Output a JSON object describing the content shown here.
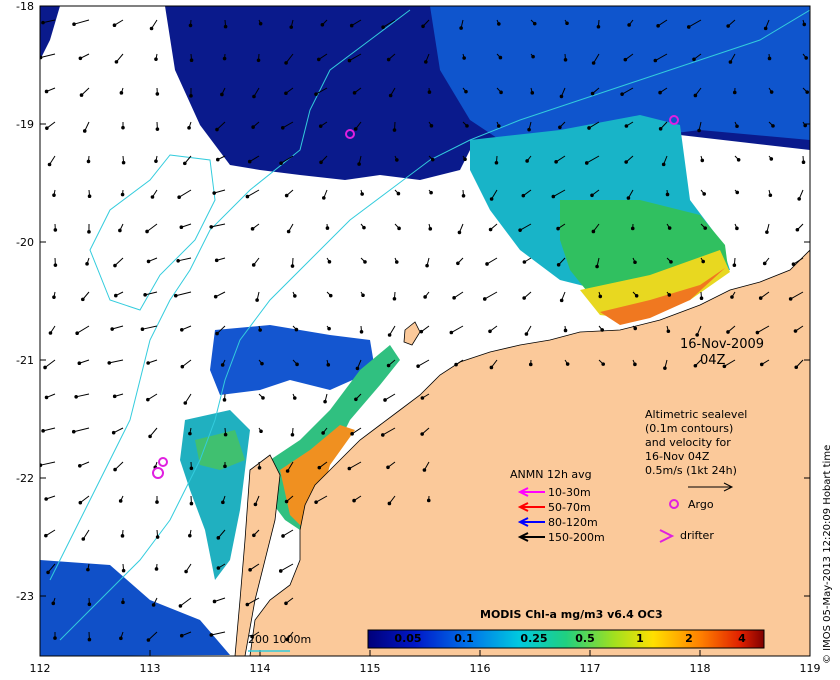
{
  "map": {
    "lat_ticks": [
      "-18",
      "-19",
      "-20",
      "-21",
      "-22",
      "-23"
    ],
    "lon_ticks": [
      "112",
      "113",
      "114",
      "115",
      "116",
      "117",
      "118",
      "119"
    ],
    "date_line1": "16-Nov-2009",
    "date_line2": "04Z",
    "sealevel_note": [
      "Altimetric sealevel",
      "(0.1m contours)",
      "and velocity for",
      "16-Nov 04Z",
      "0.5m/s (1kt 24h)"
    ],
    "anmn_title": "ANMN 12h avg",
    "anmn_legend": [
      {
        "label": "10-30m",
        "color": "#ff00ff"
      },
      {
        "label": "50-70m",
        "color": "#ff0000"
      },
      {
        "label": "80-120m",
        "color": "#0000ff"
      },
      {
        "label": "150-200m",
        "color": "#000000"
      }
    ],
    "argo_label": "Argo",
    "drifter_label": "drifter",
    "bathy_label": "200  1000m",
    "colorbar_title": "MODIS Chl-a mg/m3 v6.4 OC3",
    "colorbar_ticks": [
      "0.05",
      "0.1",
      "0.25",
      "0.5",
      "1",
      "2",
      "4"
    ],
    "credit": "© IMOS 05-May-2013 12:20:09 Hobart time",
    "colors": {
      "land": "#fbc99a",
      "contour": "#33ccdd",
      "argo": "#e020e0"
    }
  }
}
